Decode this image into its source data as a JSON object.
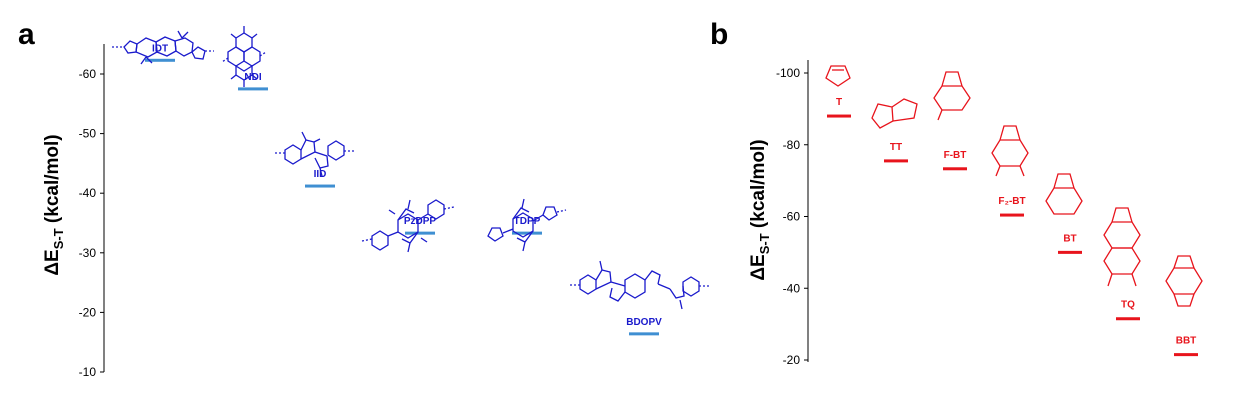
{
  "chart_data": [
    {
      "panel": "a",
      "type": "scatter",
      "marker": "horizontal-line",
      "marker_color": "#3f8fd2",
      "label_color": "#1a1acc",
      "ylabel_main": "ΔE",
      "ylabel_sub": "S-T",
      "ylabel_unit": " (kcal/mol)",
      "ylim": [
        -10,
        -65
      ],
      "yticks": [
        -60,
        -50,
        -40,
        -30,
        -20,
        -10
      ],
      "ytick_labels": [
        "-60",
        "-50",
        "-40",
        "-30",
        "-20",
        "-10"
      ],
      "categories": [
        "IDT",
        "NDI",
        "IID",
        "PzDPP",
        "TDPP",
        "BDOPV"
      ],
      "values": [
        -62.3,
        -57.5,
        -41.2,
        -33.3,
        -33.3,
        -16.4
      ]
    },
    {
      "panel": "b",
      "type": "scatter",
      "marker": "horizontal-line",
      "marker_color": "#e8141c",
      "label_color": "#e8141c",
      "ylabel_main": "ΔE",
      "ylabel_sub": "S-T",
      "ylabel_unit": " (kcal/mol)",
      "ylim": [
        -18,
        -103
      ],
      "yticks": [
        -100,
        -80,
        -60,
        -40,
        -20
      ],
      "ytick_labels": [
        "-100",
        "-80",
        "-60",
        "-40",
        "-20"
      ],
      "categories": [
        "T",
        "TT",
        "F-BT",
        "F₂-BT",
        "BT",
        "TQ",
        "BBT"
      ],
      "values": [
        -88.0,
        -75.5,
        -73.3,
        -60.4,
        -50.0,
        -31.5,
        -21.5
      ]
    }
  ]
}
